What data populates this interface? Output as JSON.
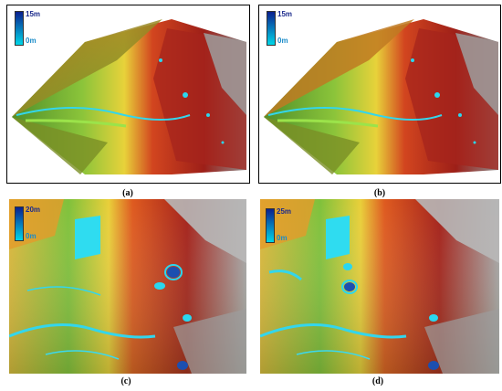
{
  "panels": [
    {
      "caption": "(a)",
      "legend_max": "15m",
      "legend_min": "0m",
      "legend_max_color": "#0b1f8f",
      "legend_min_color": "#00d6e8"
    },
    {
      "caption": "(b)",
      "legend_max": "15m",
      "legend_min": "0m",
      "legend_max_color": "#0b1f8f",
      "legend_min_color": "#00d6e8"
    },
    {
      "caption": "(c)",
      "legend_max": "20m",
      "legend_min": "0m",
      "legend_max_color": "#0b1f8f",
      "legend_min_color": "#00d6e8"
    },
    {
      "caption": "(d)",
      "legend_max": "25m",
      "legend_min": "0m",
      "legend_max_color": "#0b1f8f",
      "legend_min_color": "#00d6e8"
    }
  ],
  "colors": {
    "terrain_low": "#6db33f",
    "terrain_mid": "#e8d23a",
    "terrain_high": "#c8271e",
    "terrain_peak": "#9a9a9a",
    "water_shallow": "#29d9f0",
    "water_deep": "#1a3fa8",
    "label_max": "#1b2a8c",
    "label_min": "#1b8cc9"
  }
}
